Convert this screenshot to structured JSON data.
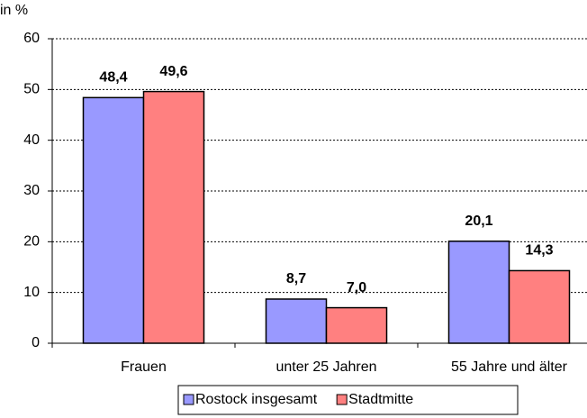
{
  "chart_data": {
    "type": "bar",
    "y_label": "in %",
    "categories": [
      "Frauen",
      "unter 25 Jahren",
      "55 Jahre und älter"
    ],
    "series": [
      {
        "name": "Rostock insgesamt",
        "color": "#9999ff",
        "values": [
          48.4,
          8.7,
          20.1
        ],
        "value_labels": [
          "48,4",
          "8,7",
          "20,1"
        ]
      },
      {
        "name": "Stadtmitte",
        "color": "#ff8080",
        "values": [
          49.6,
          7.0,
          14.3
        ],
        "value_labels": [
          "49,6",
          "7,0",
          "14,3"
        ]
      }
    ],
    "ylim": [
      0,
      60
    ],
    "yticks": [
      0,
      10,
      20,
      30,
      40,
      50,
      60
    ],
    "grid": true,
    "legend": "bottom"
  }
}
